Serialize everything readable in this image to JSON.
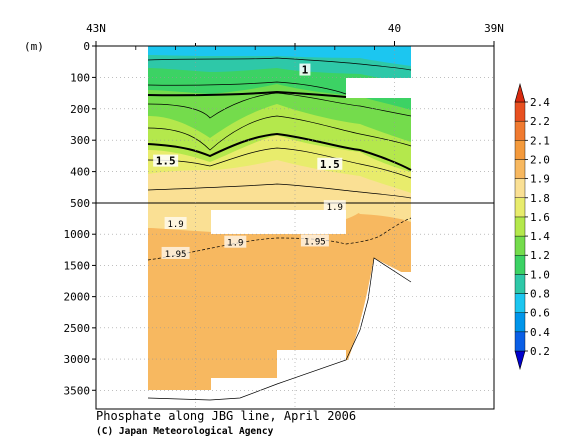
{
  "chart_data": {
    "type": "heatmap",
    "title": "Phosphate along JBG line, April 2006",
    "credit": "(C) Japan Meteorological Agency",
    "y_unit_label": "(m)",
    "x_axis": {
      "tick_labels": [
        "43N",
        "40",
        "39N"
      ],
      "tick_lat": [
        43,
        40,
        39
      ],
      "xlim_lat": [
        43,
        39
      ]
    },
    "y_axis": {
      "upper_ticks": [
        0,
        100,
        200,
        300,
        400,
        500
      ],
      "lower_ticks": [
        1000,
        1500,
        2000,
        2500,
        3000,
        3500
      ],
      "upper_range_m": [
        0,
        500
      ],
      "lower_range_m": [
        500,
        3800
      ],
      "break_depth_m": 500
    },
    "colorbar": {
      "levels": [
        "0.2",
        "0.4",
        "0.6",
        "0.8",
        "1.0",
        "1.2",
        "1.4",
        "1.6",
        "1.8",
        "1.9",
        "2.0",
        "2.1",
        "2.2",
        "2.4"
      ],
      "colors": [
        "#0000cd",
        "#0a5fe6",
        "#0095ea",
        "#1cc6f0",
        "#2ec8a8",
        "#3cd264",
        "#74dc4c",
        "#b4e84c",
        "#e8ec6c",
        "#fae094",
        "#f7b860",
        "#f49a3c",
        "#f07a30",
        "#e85020",
        "#d82a10"
      ]
    },
    "contour_labels": [
      {
        "text": "1",
        "lat": 40.9,
        "depth": 75
      },
      {
        "text": "1.5",
        "lat": 42.3,
        "depth": 365
      },
      {
        "text": "1.5",
        "lat": 40.65,
        "depth": 375
      },
      {
        "text": "1.9",
        "lat": 42.2,
        "depth": 820
      },
      {
        "text": "1.9",
        "lat": 40.6,
        "depth": 550
      },
      {
        "text": "1.95",
        "lat": 42.2,
        "depth": 1300
      },
      {
        "text": "1.9",
        "lat": 41.6,
        "depth": 1120
      },
      {
        "text": "1.95",
        "lat": 40.8,
        "depth": 1100
      }
    ],
    "grid": true
  }
}
